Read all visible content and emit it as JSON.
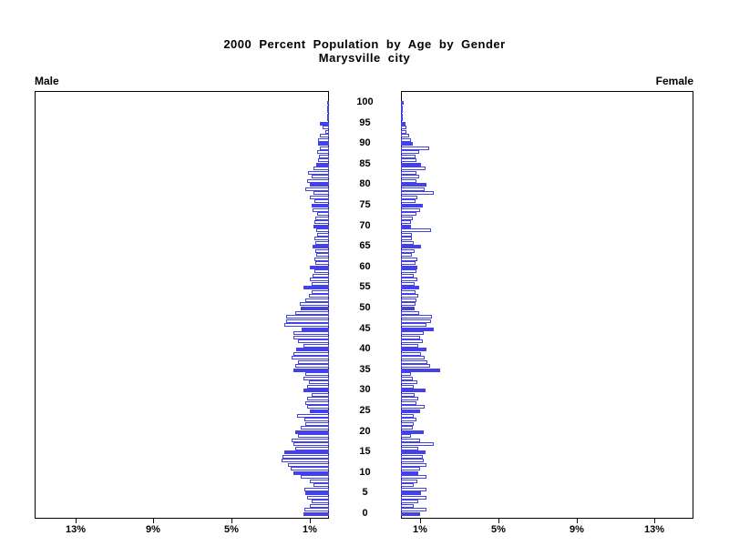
{
  "title": {
    "line1": "2000 Percent Population by Age by Gender",
    "line2": "Marysville city"
  },
  "panel_labels": {
    "left": "Male",
    "right": "Female"
  },
  "chart_data": {
    "type": "bar",
    "subtype": "population-pyramid",
    "title": "2000 Percent Population by Age by Gender",
    "subtitle": "Marysville city",
    "value_unit": "percent of total population",
    "xlim": [
      0,
      15
    ],
    "x_tick_values": [
      1,
      5,
      9,
      13
    ],
    "x_tick_labels": [
      "1%",
      "5%",
      "9%",
      "13%"
    ],
    "age_axis": {
      "min": 0,
      "max": 100,
      "tick_step": 5,
      "tick_labels": [
        "0",
        "5",
        "10",
        "15",
        "20",
        "25",
        "30",
        "35",
        "40",
        "45",
        "50",
        "55",
        "60",
        "65",
        "70",
        "75",
        "80",
        "85",
        "90",
        "95",
        "100"
      ]
    },
    "highlight_every": 5,
    "legend_position": "none",
    "grid": false,
    "colors": {
      "bar_outline": "#4242e8",
      "bar_solid_fill": "#4242e8",
      "bar_open_fill": "#ffffff",
      "axis": "#000000",
      "text": "#000000"
    },
    "series": [
      {
        "name": "Male",
        "side": "left",
        "ages_start": 0,
        "values": [
          1.3,
          1.28,
          1.0,
          0.9,
          1.1,
          1.2,
          1.28,
          0.8,
          1.0,
          1.43,
          1.8,
          1.97,
          2.12,
          2.43,
          2.38,
          2.27,
          1.74,
          1.8,
          1.9,
          1.58,
          1.74,
          1.43,
          1.23,
          1.28,
          1.65,
          1.0,
          1.1,
          1.2,
          1.1,
          0.9,
          1.3,
          1.1,
          1.05,
          1.3,
          1.2,
          1.8,
          1.75,
          1.6,
          1.9,
          1.8,
          1.66,
          1.3,
          1.6,
          1.8,
          1.8,
          1.4,
          2.27,
          2.2,
          2.2,
          1.75,
          1.43,
          1.5,
          1.2,
          1.05,
          0.9,
          1.3,
          0.9,
          1.0,
          0.85,
          0.75,
          0.97,
          0.7,
          0.75,
          0.65,
          0.7,
          0.85,
          0.7,
          0.75,
          0.6,
          0.65,
          0.8,
          0.75,
          0.7,
          0.6,
          0.85,
          0.9,
          0.75,
          1.0,
          0.8,
          1.2,
          0.97,
          1.1,
          0.9,
          1.06,
          0.8,
          0.66,
          0.55,
          0.5,
          0.6,
          0.45,
          0.58,
          0.54,
          0.45,
          0.17,
          0.32,
          0.45,
          0.1,
          0.05,
          0.08,
          0.03,
          0.05
        ]
      },
      {
        "name": "Female",
        "side": "right",
        "ages_start": 0,
        "values": [
          1.0,
          1.3,
          0.66,
          0.88,
          1.3,
          1.05,
          1.3,
          0.66,
          0.85,
          1.3,
          0.9,
          1.0,
          1.32,
          1.15,
          1.1,
          1.28,
          0.9,
          1.7,
          1.0,
          0.5,
          1.17,
          0.6,
          0.66,
          0.8,
          0.66,
          1.0,
          1.2,
          0.8,
          0.9,
          0.7,
          1.24,
          0.65,
          0.85,
          0.6,
          0.5,
          2.03,
          1.5,
          1.35,
          1.2,
          1.05,
          1.3,
          0.9,
          1.1,
          1.0,
          1.15,
          1.66,
          1.3,
          1.55,
          1.6,
          0.95,
          0.7,
          0.74,
          0.8,
          0.9,
          0.75,
          0.95,
          0.7,
          0.85,
          0.65,
          0.8,
          0.85,
          0.75,
          0.85,
          0.55,
          0.7,
          1.05,
          0.65,
          0.55,
          0.55,
          1.55,
          0.5,
          0.5,
          0.6,
          0.8,
          1.0,
          1.1,
          0.75,
          0.85,
          1.7,
          1.2,
          1.3,
          0.8,
          0.95,
          0.8,
          1.25,
          1.05,
          0.8,
          0.75,
          0.95,
          1.45,
          0.6,
          0.5,
          0.43,
          0.3,
          0.28,
          0.25,
          0.1,
          0.08,
          0.1,
          0.05,
          0.15
        ]
      }
    ]
  }
}
